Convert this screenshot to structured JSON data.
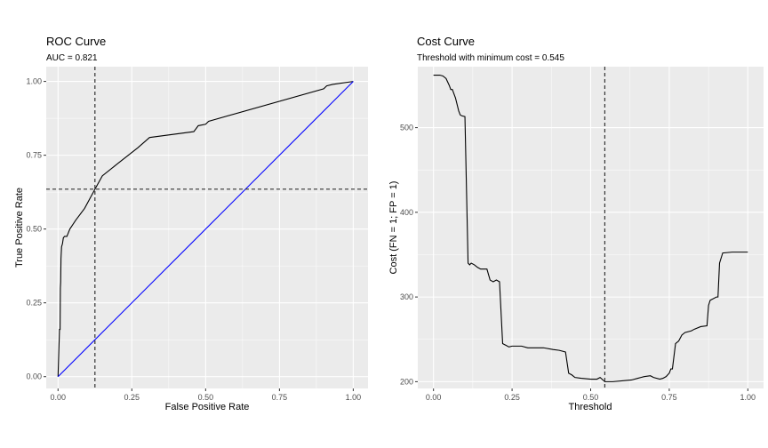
{
  "chart_data": [
    {
      "type": "line",
      "title": "ROC Curve",
      "subtitle": "AUC = 0.821",
      "xlabel": "False Positive Rate",
      "ylabel": "True Positive Rate",
      "xlim": [
        -0.04,
        1.05
      ],
      "ylim": [
        -0.04,
        1.05
      ],
      "x_ticks": [
        0.0,
        0.25,
        0.5,
        0.75,
        1.0
      ],
      "x_tick_labels": [
        "0.00",
        "0.25",
        "0.50",
        "0.75",
        "1.00"
      ],
      "y_ticks": [
        0.0,
        0.25,
        0.5,
        0.75,
        1.0
      ],
      "y_tick_labels": [
        "0.00",
        "0.25",
        "0.50",
        "0.75",
        "1.00"
      ],
      "grid": true,
      "series": [
        {
          "color": "#000000",
          "x": [
            0.0,
            0.005,
            0.007,
            0.008,
            0.009,
            0.01,
            0.012,
            0.015,
            0.018,
            0.022,
            0.03,
            0.04,
            0.06,
            0.09,
            0.125,
            0.15,
            0.2,
            0.27,
            0.31,
            0.46,
            0.475,
            0.5,
            0.51,
            0.9,
            0.91,
            0.93,
            1.0
          ],
          "y": [
            0.0,
            0.16,
            0.16,
            0.3,
            0.32,
            0.4,
            0.44,
            0.45,
            0.47,
            0.475,
            0.475,
            0.5,
            0.53,
            0.57,
            0.635,
            0.68,
            0.72,
            0.775,
            0.81,
            0.83,
            0.85,
            0.855,
            0.865,
            0.975,
            0.985,
            0.99,
            1.0
          ]
        },
        {
          "color": "#0000ff",
          "x": [
            0.0,
            1.0
          ],
          "y": [
            0.0,
            1.0
          ]
        }
      ],
      "reference_lines": [
        {
          "orientation": "vertical",
          "value": 0.125,
          "style": "dashed",
          "color": "#333333"
        },
        {
          "orientation": "horizontal",
          "value": 0.635,
          "style": "dashed",
          "color": "#333333"
        }
      ]
    },
    {
      "type": "line",
      "title": "Cost Curve",
      "subtitle": "Threshold with minimum cost = 0.545",
      "xlabel": "Threshold",
      "ylabel": "Cost (FN = 1; FP = 1)",
      "xlim": [
        -0.05,
        1.05
      ],
      "ylim": [
        192,
        572
      ],
      "x_ticks": [
        0.0,
        0.25,
        0.5,
        0.75,
        1.0
      ],
      "x_tick_labels": [
        "0.00",
        "0.25",
        "0.50",
        "0.75",
        "1.00"
      ],
      "y_ticks": [
        200,
        300,
        400,
        500
      ],
      "y_tick_labels": [
        "200",
        "300",
        "400",
        "500"
      ],
      "grid": true,
      "series": [
        {
          "color": "#000000",
          "x": [
            0.0,
            0.02,
            0.03,
            0.04,
            0.05,
            0.055,
            0.06,
            0.07,
            0.08,
            0.085,
            0.09,
            0.1,
            0.11,
            0.115,
            0.12,
            0.13,
            0.14,
            0.15,
            0.17,
            0.18,
            0.19,
            0.2,
            0.21,
            0.22,
            0.225,
            0.23,
            0.24,
            0.25,
            0.26,
            0.28,
            0.3,
            0.32,
            0.35,
            0.38,
            0.4,
            0.42,
            0.43,
            0.44,
            0.45,
            0.47,
            0.5,
            0.52,
            0.53,
            0.545,
            0.57,
            0.6,
            0.63,
            0.65,
            0.66,
            0.67,
            0.69,
            0.7,
            0.72,
            0.73,
            0.74,
            0.75,
            0.755,
            0.76,
            0.77,
            0.78,
            0.79,
            0.8,
            0.82,
            0.83,
            0.85,
            0.87,
            0.875,
            0.88,
            0.9,
            0.905,
            0.91,
            0.92,
            0.95,
            1.0
          ],
          "y": [
            562,
            562,
            561,
            558,
            550,
            545,
            545,
            535,
            520,
            515,
            514,
            513,
            340,
            338,
            340,
            338,
            335,
            333,
            333,
            320,
            318,
            320,
            318,
            245,
            244,
            243,
            241,
            242,
            242,
            242,
            240,
            240,
            240,
            238,
            237,
            235,
            210,
            208,
            205,
            204,
            203,
            203,
            205,
            200,
            200,
            201,
            202,
            204,
            205,
            206,
            207,
            205,
            203,
            204,
            206,
            210,
            215,
            215,
            245,
            248,
            255,
            258,
            260,
            262,
            265,
            266,
            290,
            296,
            300,
            300,
            340,
            352,
            353,
            353
          ]
        }
      ],
      "reference_lines": [
        {
          "orientation": "vertical",
          "value": 0.545,
          "style": "dashed",
          "color": "#333333"
        }
      ]
    }
  ]
}
